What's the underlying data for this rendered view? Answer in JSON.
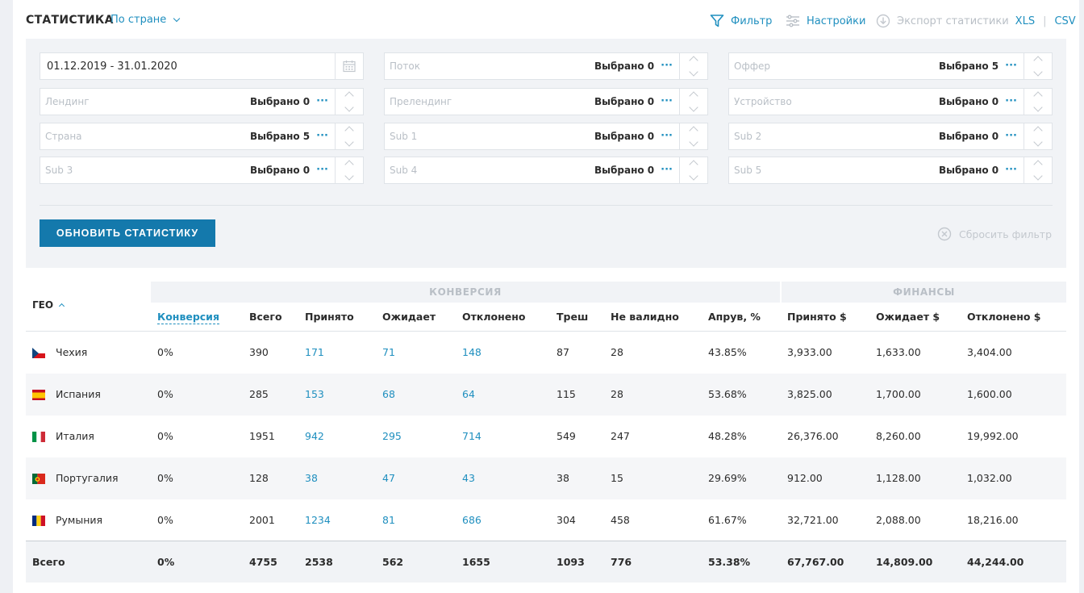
{
  "header": {
    "title": "СТАТИСТИКА",
    "group_by": "По стране",
    "filter_label": "Фильтр",
    "settings_label": "Настройки",
    "export_label": "Экспорт статистики",
    "export_xls": "XLS",
    "export_sep": "|",
    "export_csv": "CSV"
  },
  "filters": {
    "date_range": "01.12.2019 - 31.01.2020",
    "fields": [
      {
        "placeholder": "Поток",
        "selected": "Выбрано 0"
      },
      {
        "placeholder": "Оффер",
        "selected": "Выбрано 5"
      },
      {
        "placeholder": "Лендинг",
        "selected": "Выбрано 0"
      },
      {
        "placeholder": "Прелендинг",
        "selected": "Выбрано 0"
      },
      {
        "placeholder": "Устройство",
        "selected": "Выбрано 0"
      },
      {
        "placeholder": "Страна",
        "selected": "Выбрано 5"
      },
      {
        "placeholder": "Sub 1",
        "selected": "Выбрано 0"
      },
      {
        "placeholder": "Sub 2",
        "selected": "Выбрано 0"
      },
      {
        "placeholder": "Sub 3",
        "selected": "Выбрано 0"
      },
      {
        "placeholder": "Sub 4",
        "selected": "Выбрано 0"
      },
      {
        "placeholder": "Sub 5",
        "selected": "Выбрано 0"
      }
    ],
    "dots": "···",
    "update_button": "ОБНОВИТЬ СТАТИСТИКУ",
    "reset_label": "Сбросить фильтр"
  },
  "table": {
    "group_conversion": "КОНВЕРСИЯ",
    "group_finance": "ФИНАНСЫ",
    "geo_header": "ГЕО",
    "columns": [
      "Конверсия",
      "Всего",
      "Принято",
      "Ожидает",
      "Отклонено",
      "Треш",
      "Не валидно",
      "Апрув, %",
      "Принято $",
      "Ожидает $",
      "Отклонено $"
    ],
    "rows": [
      {
        "country": "Чехия",
        "flag": "cz",
        "cells": [
          "0%",
          "390",
          "171",
          "71",
          "148",
          "87",
          "28",
          "43.85%",
          "3,933.00",
          "1,633.00",
          "3,404.00"
        ]
      },
      {
        "country": "Испания",
        "flag": "es",
        "cells": [
          "0%",
          "285",
          "153",
          "68",
          "64",
          "115",
          "28",
          "53.68%",
          "3,825.00",
          "1,700.00",
          "1,600.00"
        ]
      },
      {
        "country": "Италия",
        "flag": "it",
        "cells": [
          "0%",
          "1951",
          "942",
          "295",
          "714",
          "549",
          "247",
          "48.28%",
          "26,376.00",
          "8,260.00",
          "19,992.00"
        ]
      },
      {
        "country": "Португалия",
        "flag": "pt",
        "cells": [
          "0%",
          "128",
          "38",
          "47",
          "43",
          "38",
          "15",
          "29.69%",
          "912.00",
          "1,128.00",
          "1,032.00"
        ]
      },
      {
        "country": "Румыния",
        "flag": "ro",
        "cells": [
          "0%",
          "2001",
          "1234",
          "81",
          "686",
          "304",
          "458",
          "61.67%",
          "32,721.00",
          "2,088.00",
          "18,216.00"
        ]
      }
    ],
    "total": {
      "label": "Всего",
      "cells": [
        "0%",
        "4755",
        "2538",
        "562",
        "1655",
        "1093",
        "776",
        "53.38%",
        "67,767.00",
        "14,809.00",
        "44,244.00"
      ]
    }
  },
  "colors": {
    "accent": "#1f8fbf",
    "button": "#1479ac"
  }
}
